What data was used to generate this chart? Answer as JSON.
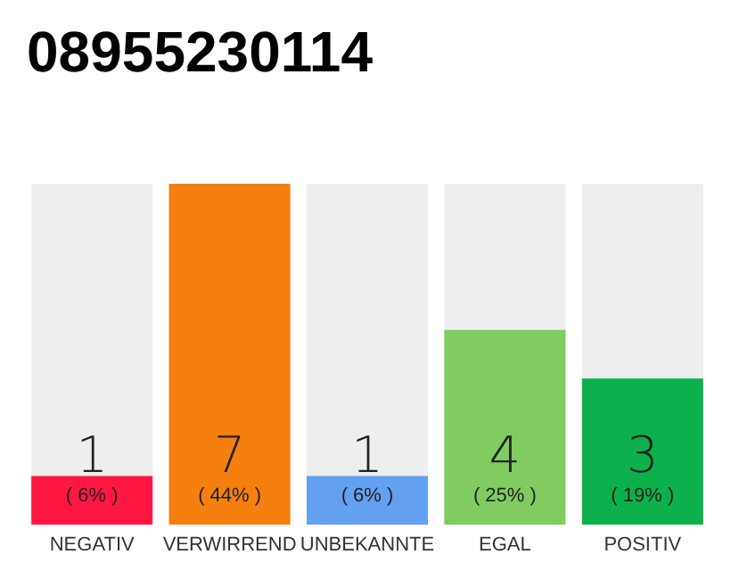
{
  "chart_data": {
    "type": "bar",
    "title": "08955230114",
    "categories": [
      "NEGATIV",
      "VERWIRREND",
      "UNBEKANNTE",
      "EGAL",
      "POSITIV"
    ],
    "values": [
      1,
      7,
      1,
      4,
      3
    ],
    "colors": [
      "#ff1744",
      "#f57f0f",
      "#64a0f0",
      "#80cc60",
      "#0db14b"
    ],
    "value_labels": [
      "1\n( 6% )",
      "7\n( 44% )",
      "1\n( 6% )",
      "4\n( 25% )",
      "3\n( 19% )"
    ]
  }
}
